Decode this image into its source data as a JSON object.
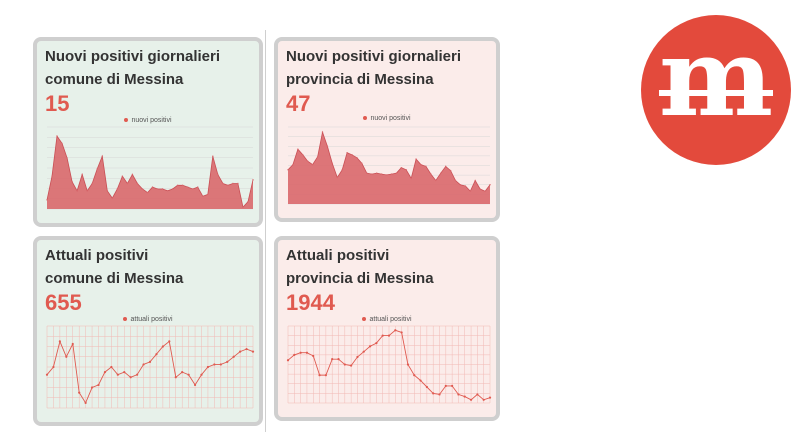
{
  "chart_data": [
    {
      "type": "area",
      "title": "Nuovi positivi giornalieri\ncomune di Messina",
      "headline_value": "15",
      "series": [
        {
          "name": "nuovi positivi",
          "values": [
            5,
            18,
            40,
            36,
            28,
            15,
            10,
            19,
            10,
            14,
            22,
            29,
            10,
            6,
            11,
            18,
            14,
            19,
            14,
            11,
            9,
            12,
            11,
            11,
            10,
            11,
            13,
            13,
            12,
            11,
            12,
            7,
            8,
            29,
            19,
            14,
            13,
            14,
            14,
            1,
            4,
            16
          ]
        }
      ],
      "ylim": [
        0,
        45
      ],
      "color": "#d9686c"
    },
    {
      "type": "area",
      "title": "Nuovi positivi giornalieri\nprovincia di Messina",
      "headline_value": "47",
      "series": [
        {
          "name": "nuovi positivi",
          "values": [
            80,
            92,
            128,
            115,
            100,
            92,
            110,
            168,
            135,
            95,
            62,
            80,
            120,
            115,
            108,
            95,
            72,
            70,
            72,
            70,
            68,
            70,
            72,
            85,
            80,
            60,
            105,
            92,
            88,
            70,
            55,
            72,
            88,
            78,
            55,
            45,
            42,
            30,
            55,
            35,
            30,
            45
          ]
        }
      ],
      "ylim": [
        0,
        180
      ],
      "color": "#d9686c"
    },
    {
      "type": "line",
      "title": "Attuali positivi\ncomune di Messina",
      "headline_value": "655",
      "series": [
        {
          "name": "attuali positivi",
          "values": [
            625,
            640,
            690,
            660,
            685,
            590,
            570,
            600,
            605,
            630,
            640,
            625,
            630,
            620,
            625,
            645,
            650,
            665,
            680,
            690,
            620,
            630,
            625,
            605,
            625,
            640,
            645,
            645,
            650,
            660,
            670,
            675,
            670
          ]
        }
      ],
      "ylim": [
        560,
        720
      ],
      "color": "#e05a50"
    },
    {
      "type": "line",
      "title": "Attuali positivi\nprovincia di Messina",
      "headline_value": "1944",
      "series": [
        {
          "name": "attuali positivi",
          "values": [
            2280,
            2330,
            2350,
            2350,
            2320,
            2140,
            2140,
            2290,
            2290,
            2240,
            2230,
            2310,
            2360,
            2410,
            2440,
            2510,
            2510,
            2560,
            2540,
            2240,
            2140,
            2090,
            2030,
            1970,
            1960,
            2040,
            2040,
            1960,
            1940,
            1910,
            1960,
            1910,
            1930
          ]
        }
      ],
      "ylim": [
        1880,
        2600
      ],
      "color": "#e05a50"
    }
  ]
}
